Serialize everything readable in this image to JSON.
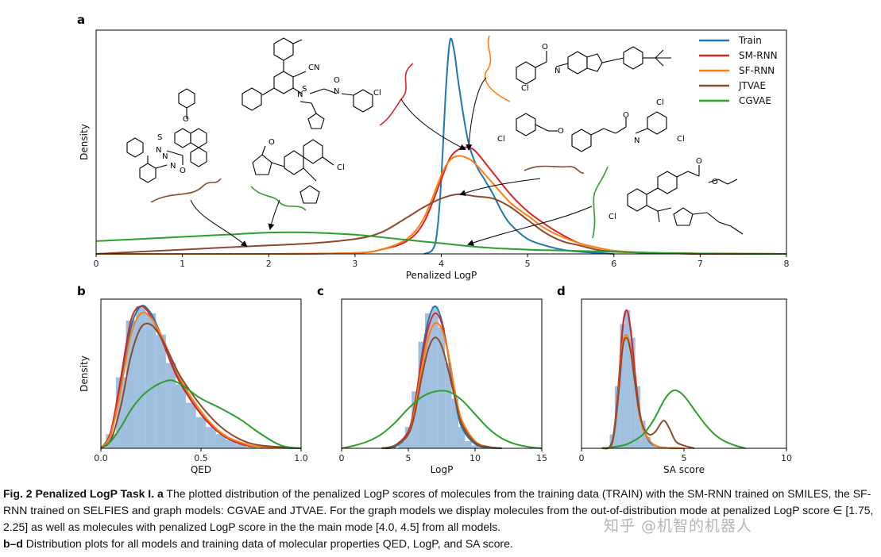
{
  "chart_data": [
    {
      "panel": "a",
      "type": "line",
      "xlabel": "Penalized LogP",
      "ylabel": "Density",
      "xlim": [
        0,
        8
      ],
      "xticks": [
        "0",
        "1",
        "2",
        "3",
        "4",
        "5",
        "6",
        "7",
        "8"
      ],
      "legend_placement": "top-right",
      "series": [
        {
          "name": "Train",
          "color": "#1f77b4",
          "x": [
            3.8,
            3.9,
            3.95,
            4.0,
            4.05,
            4.1,
            4.15,
            4.2,
            4.3,
            4.4,
            4.5,
            4.6,
            4.7,
            4.8,
            5.0,
            5.2,
            5.4,
            5.6,
            5.8,
            6.0
          ],
          "y": [
            0.0,
            0.02,
            0.1,
            0.35,
            0.75,
            1.0,
            0.95,
            0.8,
            0.55,
            0.42,
            0.35,
            0.28,
            0.2,
            0.14,
            0.07,
            0.04,
            0.02,
            0.01,
            0.005,
            0.0
          ]
        },
        {
          "name": "SM-RNN",
          "color": "#d62728",
          "x": [
            0,
            1,
            2,
            3,
            3.3,
            3.6,
            3.8,
            4.0,
            4.1,
            4.2,
            4.3,
            4.4,
            4.6,
            4.8,
            5.0,
            5.2,
            5.4,
            5.6,
            5.8,
            6.0,
            6.4,
            7.0,
            8.0
          ],
          "y": [
            0,
            0,
            0,
            0.005,
            0.02,
            0.06,
            0.15,
            0.35,
            0.45,
            0.49,
            0.5,
            0.48,
            0.38,
            0.28,
            0.2,
            0.14,
            0.09,
            0.05,
            0.03,
            0.015,
            0.005,
            0.002,
            0.0
          ]
        },
        {
          "name": "SF-RNN",
          "color": "#ff7f0e",
          "x": [
            0,
            1,
            2,
            3,
            3.3,
            3.6,
            3.8,
            4.0,
            4.1,
            4.2,
            4.3,
            4.4,
            4.6,
            4.8,
            5.0,
            5.2,
            5.4,
            5.6,
            5.8,
            6.0,
            6.4,
            7.0,
            8.0
          ],
          "y": [
            0,
            0,
            0,
            0.005,
            0.02,
            0.07,
            0.17,
            0.37,
            0.44,
            0.46,
            0.45,
            0.42,
            0.33,
            0.24,
            0.18,
            0.12,
            0.08,
            0.05,
            0.03,
            0.015,
            0.005,
            0.002,
            0.0
          ]
        },
        {
          "name": "JTVAE",
          "color": "#8c4a2f",
          "x": [
            0,
            0.5,
            1,
            1.5,
            2,
            2.5,
            3,
            3.3,
            3.6,
            3.8,
            4.0,
            4.2,
            4.4,
            4.6,
            4.8,
            5.0,
            5.2,
            5.4,
            5.6,
            5.8,
            6.0,
            6.5,
            7.0,
            8.0
          ],
          "y": [
            0.0,
            0.01,
            0.02,
            0.03,
            0.04,
            0.05,
            0.07,
            0.1,
            0.17,
            0.22,
            0.26,
            0.28,
            0.27,
            0.26,
            0.22,
            0.16,
            0.1,
            0.06,
            0.04,
            0.02,
            0.01,
            0.005,
            0.0,
            0.0
          ]
        },
        {
          "name": "CGVAE",
          "color": "#2ca02c",
          "x": [
            0,
            0.5,
            1,
            1.5,
            2,
            2.5,
            3,
            3.5,
            4,
            4.5,
            5,
            5.5,
            6,
            6.5,
            7,
            8
          ],
          "y": [
            0.06,
            0.07,
            0.08,
            0.09,
            0.1,
            0.1,
            0.09,
            0.07,
            0.05,
            0.03,
            0.02,
            0.015,
            0.01,
            0.005,
            0.002,
            0.0
          ]
        }
      ]
    },
    {
      "panel": "b",
      "type": "line",
      "xlabel": "QED",
      "ylabel": "Density",
      "xlim": [
        0,
        1
      ],
      "xticks": [
        "0.0",
        "0.5",
        "1.0"
      ],
      "histogram": {
        "color": "#8fb5d9",
        "x": [
          0.05,
          0.1,
          0.15,
          0.2,
          0.25,
          0.3,
          0.35,
          0.4,
          0.45,
          0.5,
          0.55,
          0.6,
          0.65,
          0.7,
          0.75
        ],
        "y": [
          0.1,
          0.5,
          0.9,
          1.0,
          0.95,
          0.8,
          0.6,
          0.45,
          0.32,
          0.22,
          0.15,
          0.1,
          0.06,
          0.03,
          0.01
        ]
      },
      "series": [
        {
          "name": "Train",
          "color": "#1f77b4",
          "x": [
            0,
            0.05,
            0.1,
            0.15,
            0.2,
            0.25,
            0.3,
            0.35,
            0.4,
            0.5,
            0.6,
            0.7,
            0.8,
            1.0
          ],
          "y": [
            0,
            0.1,
            0.45,
            0.85,
            1.0,
            0.95,
            0.8,
            0.62,
            0.46,
            0.24,
            0.1,
            0.03,
            0.01,
            0
          ]
        },
        {
          "name": "SM-RNN",
          "color": "#d62728",
          "x": [
            0,
            0.05,
            0.1,
            0.15,
            0.2,
            0.25,
            0.3,
            0.35,
            0.4,
            0.5,
            0.6,
            0.7,
            0.8,
            1.0
          ],
          "y": [
            0,
            0.12,
            0.5,
            0.9,
            1.0,
            0.93,
            0.78,
            0.6,
            0.45,
            0.24,
            0.1,
            0.03,
            0.01,
            0
          ]
        },
        {
          "name": "SF-RNN",
          "color": "#ff7f0e",
          "x": [
            0,
            0.05,
            0.1,
            0.15,
            0.2,
            0.25,
            0.3,
            0.35,
            0.4,
            0.5,
            0.6,
            0.7,
            0.8,
            1.0
          ],
          "y": [
            0,
            0.1,
            0.42,
            0.8,
            0.95,
            0.92,
            0.8,
            0.64,
            0.48,
            0.26,
            0.11,
            0.04,
            0.01,
            0
          ]
        },
        {
          "name": "JTVAE",
          "color": "#8c4a2f",
          "x": [
            0,
            0.05,
            0.1,
            0.15,
            0.2,
            0.25,
            0.3,
            0.35,
            0.4,
            0.5,
            0.6,
            0.7,
            0.8,
            1.0
          ],
          "y": [
            0,
            0.06,
            0.3,
            0.65,
            0.85,
            0.87,
            0.78,
            0.64,
            0.5,
            0.3,
            0.15,
            0.06,
            0.02,
            0
          ]
        },
        {
          "name": "CGVAE",
          "color": "#2ca02c",
          "x": [
            0,
            0.05,
            0.1,
            0.15,
            0.2,
            0.25,
            0.3,
            0.35,
            0.4,
            0.45,
            0.5,
            0.6,
            0.7,
            0.8,
            0.9,
            1.0
          ],
          "y": [
            0,
            0.05,
            0.15,
            0.27,
            0.36,
            0.42,
            0.46,
            0.48,
            0.45,
            0.4,
            0.35,
            0.28,
            0.2,
            0.1,
            0.02,
            0
          ]
        }
      ]
    },
    {
      "panel": "c",
      "type": "line",
      "xlabel": "LogP",
      "ylabel": "",
      "xlim": [
        0,
        15
      ],
      "xticks": [
        "0",
        "5",
        "10",
        "15"
      ],
      "histogram": {
        "color": "#8fb5d9",
        "x": [
          4.5,
          5,
          5.5,
          6,
          6.5,
          7,
          7.5,
          8,
          8.5,
          9,
          9.5,
          10
        ],
        "y": [
          0.05,
          0.15,
          0.4,
          0.75,
          0.95,
          1.0,
          0.85,
          0.6,
          0.35,
          0.15,
          0.05,
          0.02
        ]
      },
      "series": [
        {
          "name": "Train",
          "color": "#1f77b4",
          "x": [
            3,
            4,
            5,
            5.5,
            6,
            6.5,
            7,
            7.5,
            8,
            8.5,
            9,
            10,
            11,
            12
          ],
          "y": [
            0,
            0.01,
            0.1,
            0.3,
            0.65,
            0.9,
            1.0,
            0.9,
            0.65,
            0.35,
            0.15,
            0.03,
            0.005,
            0
          ]
        },
        {
          "name": "SM-RNN",
          "color": "#d62728",
          "x": [
            3,
            4,
            5,
            5.5,
            6,
            6.5,
            7,
            7.5,
            8,
            8.5,
            9,
            10,
            11,
            12
          ],
          "y": [
            0,
            0.02,
            0.12,
            0.32,
            0.62,
            0.85,
            0.95,
            0.88,
            0.66,
            0.38,
            0.18,
            0.04,
            0.01,
            0
          ]
        },
        {
          "name": "SF-RNN",
          "color": "#ff7f0e",
          "x": [
            3,
            4,
            5,
            5.5,
            6,
            6.5,
            7,
            7.5,
            8,
            8.5,
            9,
            10,
            11,
            12
          ],
          "y": [
            0,
            0.02,
            0.1,
            0.28,
            0.56,
            0.78,
            0.88,
            0.84,
            0.66,
            0.4,
            0.2,
            0.05,
            0.01,
            0
          ]
        },
        {
          "name": "JTVAE",
          "color": "#8c4a2f",
          "x": [
            3,
            4,
            5,
            5.5,
            6,
            6.5,
            7,
            7.5,
            8,
            8.5,
            9,
            10,
            11,
            12
          ],
          "y": [
            0,
            0.02,
            0.1,
            0.25,
            0.5,
            0.7,
            0.78,
            0.72,
            0.55,
            0.35,
            0.17,
            0.04,
            0.01,
            0
          ]
        },
        {
          "name": "CGVAE",
          "color": "#2ca02c",
          "x": [
            0,
            1,
            2,
            3,
            4,
            5,
            6,
            7,
            8,
            9,
            10,
            11,
            12,
            13,
            14,
            15
          ],
          "y": [
            0,
            0.02,
            0.05,
            0.1,
            0.18,
            0.28,
            0.36,
            0.4,
            0.4,
            0.34,
            0.24,
            0.14,
            0.07,
            0.03,
            0.01,
            0
          ]
        }
      ]
    },
    {
      "panel": "d",
      "type": "line",
      "xlabel": "SA score",
      "ylabel": "",
      "xlim": [
        0,
        10
      ],
      "xticks": [
        "0",
        "5",
        "10"
      ],
      "histogram": {
        "color": "#8fb5d9",
        "x": [
          1.5,
          1.75,
          2.0,
          2.25,
          2.5,
          2.75,
          3.0,
          3.25,
          3.5,
          3.75
        ],
        "y": [
          0.1,
          0.45,
          0.9,
          1.0,
          0.8,
          0.45,
          0.2,
          0.08,
          0.03,
          0.01
        ]
      },
      "series": [
        {
          "name": "Train",
          "color": "#1f77b4",
          "x": [
            1.0,
            1.5,
            1.8,
            2.0,
            2.2,
            2.4,
            2.6,
            2.8,
            3.0,
            3.3,
            3.6,
            4.0,
            5.0
          ],
          "y": [
            0,
            0.05,
            0.45,
            0.85,
            1.0,
            0.85,
            0.55,
            0.3,
            0.15,
            0.05,
            0.02,
            0.005,
            0
          ]
        },
        {
          "name": "SM-RNN",
          "color": "#d62728",
          "x": [
            1.0,
            1.5,
            1.8,
            2.0,
            2.2,
            2.4,
            2.6,
            2.8,
            3.0,
            3.3,
            3.6,
            4.0,
            5.0
          ],
          "y": [
            0,
            0.05,
            0.45,
            0.87,
            1.0,
            0.86,
            0.56,
            0.3,
            0.15,
            0.06,
            0.02,
            0.005,
            0
          ]
        },
        {
          "name": "SF-RNN",
          "color": "#ff7f0e",
          "x": [
            1.0,
            1.5,
            1.8,
            2.0,
            2.2,
            2.4,
            2.6,
            2.8,
            3.0,
            3.3,
            3.6,
            4.0,
            5.0
          ],
          "y": [
            0,
            0.04,
            0.4,
            0.75,
            0.82,
            0.72,
            0.48,
            0.26,
            0.14,
            0.06,
            0.02,
            0.005,
            0
          ]
        },
        {
          "name": "JTVAE",
          "color": "#8c4a2f",
          "x": [
            1.0,
            1.5,
            1.8,
            2.0,
            2.2,
            2.4,
            2.6,
            2.8,
            3.0,
            3.3,
            3.6,
            4.0,
            4.3,
            4.6,
            5.0,
            5.5
          ],
          "y": [
            0,
            0.04,
            0.38,
            0.72,
            0.8,
            0.7,
            0.48,
            0.28,
            0.16,
            0.1,
            0.12,
            0.2,
            0.14,
            0.05,
            0.02,
            0
          ]
        },
        {
          "name": "CGVAE",
          "color": "#2ca02c",
          "x": [
            1.0,
            2.0,
            2.5,
            3.0,
            3.5,
            4.0,
            4.3,
            4.6,
            5.0,
            5.5,
            6.0,
            6.5,
            7.0,
            7.5,
            8.0
          ],
          "y": [
            0,
            0.02,
            0.05,
            0.1,
            0.2,
            0.34,
            0.4,
            0.42,
            0.38,
            0.28,
            0.18,
            0.1,
            0.05,
            0.02,
            0
          ]
        }
      ]
    }
  ],
  "panel_letters": {
    "a": "a",
    "b": "b",
    "c": "c",
    "d": "d"
  },
  "caption": {
    "fig_label": "Fig. 2 Penalized LogP Task I.",
    "part_a_label": "a",
    "part_a_text": "The plotted distribution of the penalized LogP scores of molecules from the training data (TRAIN) with the SM-RNN trained on SMILES, the SF-RNN trained on SELFIES and graph models: CGVAE and JTVAE. For the graph models we display molecules from the out-of-distribution mode at penalized LogP score ∈ [1.75, 2.25] as well as molecules with penalized LogP score in the the main mode [4.0, 4.5] from all models.",
    "part_bd_label": "b–d",
    "part_bd_text": "Distribution plots for all models and training data of molecular properties QED, LogP, and SA score."
  },
  "watermark": "知乎 @机智的机器人",
  "molecules": {
    "atoms": [
      "S",
      "N",
      "O",
      "N",
      "N",
      "O",
      "O",
      "Cl",
      "CN",
      "N",
      "S",
      "Cl",
      "N",
      "O",
      "Cl",
      "O",
      "N",
      "Cl",
      "Cl",
      "O",
      "N",
      "O",
      "O",
      "Cl",
      "Cl",
      "O"
    ]
  }
}
